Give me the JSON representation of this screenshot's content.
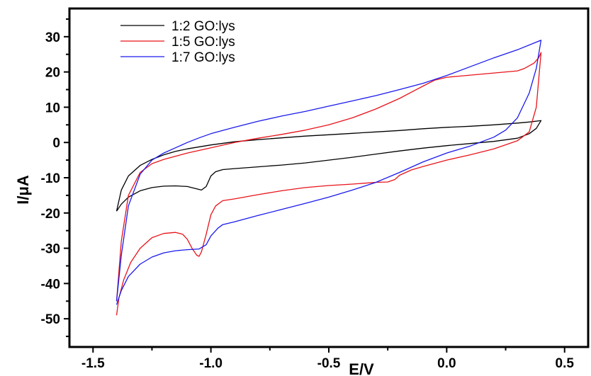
{
  "chart_data": {
    "type": "line",
    "title": "",
    "xlabel": "E/V",
    "ylabel": "I/μA",
    "xlim": [
      -1.6,
      0.6
    ],
    "ylim": [
      -58,
      38
    ],
    "x_ticks": [
      -1.5,
      -1.0,
      -0.5,
      0.0,
      0.5
    ],
    "x_tick_labels": [
      "-1.5",
      "-1.0",
      "-0.5",
      "0.0",
      "0.5"
    ],
    "y_ticks": [
      30,
      20,
      10,
      0,
      -10,
      -20,
      -30,
      -40,
      -50
    ],
    "y_tick_labels": [
      "30",
      "20",
      "10",
      "0",
      "-10",
      "-20",
      "-30",
      "-40",
      "-50"
    ],
    "grid": false,
    "legend_position": "top-left",
    "series": [
      {
        "name": "1:2 GO:lys",
        "color": "#000000",
        "points": [
          [
            -1.4,
            -19.5
          ],
          [
            -1.38,
            -17.5
          ],
          [
            -1.35,
            -15.5
          ],
          [
            -1.3,
            -13.7
          ],
          [
            -1.25,
            -12.8
          ],
          [
            -1.2,
            -12.4
          ],
          [
            -1.15,
            -12.3
          ],
          [
            -1.1,
            -12.5
          ],
          [
            -1.07,
            -13.0
          ],
          [
            -1.04,
            -13.5
          ],
          [
            -1.02,
            -12.5
          ],
          [
            -1.0,
            -9.5
          ],
          [
            -0.98,
            -8.3
          ],
          [
            -0.95,
            -7.7
          ],
          [
            -0.9,
            -7.4
          ],
          [
            -0.8,
            -6.9
          ],
          [
            -0.7,
            -6.4
          ],
          [
            -0.6,
            -5.8
          ],
          [
            -0.5,
            -5.0
          ],
          [
            -0.4,
            -4.2
          ],
          [
            -0.3,
            -3.3
          ],
          [
            -0.2,
            -2.4
          ],
          [
            -0.1,
            -1.6
          ],
          [
            0.0,
            -0.9
          ],
          [
            0.1,
            -0.3
          ],
          [
            0.2,
            0.3
          ],
          [
            0.3,
            1.2
          ],
          [
            0.35,
            2.5
          ],
          [
            0.38,
            4.0
          ],
          [
            0.4,
            6.2
          ],
          [
            0.35,
            5.8
          ],
          [
            0.3,
            5.5
          ],
          [
            0.2,
            5.0
          ],
          [
            0.1,
            4.6
          ],
          [
            0.0,
            4.3
          ],
          [
            -0.1,
            3.9
          ],
          [
            -0.2,
            3.4
          ],
          [
            -0.3,
            3.0
          ],
          [
            -0.4,
            2.6
          ],
          [
            -0.5,
            2.2
          ],
          [
            -0.6,
            1.8
          ],
          [
            -0.7,
            1.3
          ],
          [
            -0.8,
            0.8
          ],
          [
            -0.9,
            0.2
          ],
          [
            -1.0,
            -0.7
          ],
          [
            -1.1,
            -1.8
          ],
          [
            -1.15,
            -2.5
          ],
          [
            -1.2,
            -3.5
          ],
          [
            -1.25,
            -4.8
          ],
          [
            -1.3,
            -6.5
          ],
          [
            -1.35,
            -9.5
          ],
          [
            -1.38,
            -13.5
          ],
          [
            -1.4,
            -19.5
          ]
        ]
      },
      {
        "name": "1:5 GO:lys",
        "color": "#e8141a",
        "points": [
          [
            -1.4,
            -49.0
          ],
          [
            -1.39,
            -44.0
          ],
          [
            -1.37,
            -39.0
          ],
          [
            -1.34,
            -34.0
          ],
          [
            -1.3,
            -30.0
          ],
          [
            -1.25,
            -27.0
          ],
          [
            -1.2,
            -25.8
          ],
          [
            -1.15,
            -25.5
          ],
          [
            -1.12,
            -26.0
          ],
          [
            -1.1,
            -27.5
          ],
          [
            -1.08,
            -30.0
          ],
          [
            -1.06,
            -32.0
          ],
          [
            -1.05,
            -32.3
          ],
          [
            -1.04,
            -31.0
          ],
          [
            -1.02,
            -26.0
          ],
          [
            -1.0,
            -20.5
          ],
          [
            -0.98,
            -18.0
          ],
          [
            -0.95,
            -16.5
          ],
          [
            -0.9,
            -16.0
          ],
          [
            -0.8,
            -14.8
          ],
          [
            -0.7,
            -13.7
          ],
          [
            -0.6,
            -12.8
          ],
          [
            -0.5,
            -12.2
          ],
          [
            -0.4,
            -11.8
          ],
          [
            -0.3,
            -11.3
          ],
          [
            -0.25,
            -11.2
          ],
          [
            -0.22,
            -10.5
          ],
          [
            -0.2,
            -9.3
          ],
          [
            -0.15,
            -7.8
          ],
          [
            -0.1,
            -6.8
          ],
          [
            0.0,
            -5.0
          ],
          [
            0.1,
            -3.5
          ],
          [
            0.2,
            -1.8
          ],
          [
            0.3,
            0.5
          ],
          [
            0.35,
            3.0
          ],
          [
            0.38,
            10.0
          ],
          [
            0.4,
            25.5
          ],
          [
            0.39,
            24.0
          ],
          [
            0.37,
            22.5
          ],
          [
            0.33,
            21.0
          ],
          [
            0.3,
            20.3
          ],
          [
            0.2,
            19.7
          ],
          [
            0.1,
            19.1
          ],
          [
            0.05,
            18.8
          ],
          [
            0.0,
            18.5
          ],
          [
            -0.05,
            17.7
          ],
          [
            -0.1,
            16.0
          ],
          [
            -0.2,
            12.5
          ],
          [
            -0.3,
            9.5
          ],
          [
            -0.4,
            7.0
          ],
          [
            -0.5,
            5.0
          ],
          [
            -0.6,
            3.5
          ],
          [
            -0.7,
            2.3
          ],
          [
            -0.8,
            1.2
          ],
          [
            -0.9,
            0.0
          ],
          [
            -1.0,
            -1.5
          ],
          [
            -1.1,
            -3.0
          ],
          [
            -1.2,
            -4.8
          ],
          [
            -1.25,
            -6.0
          ],
          [
            -1.3,
            -8.5
          ],
          [
            -1.35,
            -15.0
          ],
          [
            -1.38,
            -28.0
          ],
          [
            -1.4,
            -45.0
          ]
        ]
      },
      {
        "name": "1:7 GO:lys",
        "color": "#1a1aee",
        "points": [
          [
            -1.4,
            -46.0
          ],
          [
            -1.38,
            -42.0
          ],
          [
            -1.35,
            -38.0
          ],
          [
            -1.3,
            -34.5
          ],
          [
            -1.25,
            -32.5
          ],
          [
            -1.2,
            -31.3
          ],
          [
            -1.15,
            -30.7
          ],
          [
            -1.1,
            -30.4
          ],
          [
            -1.05,
            -30.2
          ],
          [
            -1.02,
            -29.0
          ],
          [
            -1.0,
            -26.5
          ],
          [
            -0.97,
            -24.3
          ],
          [
            -0.95,
            -23.3
          ],
          [
            -0.9,
            -22.5
          ],
          [
            -0.8,
            -20.7
          ],
          [
            -0.7,
            -19.0
          ],
          [
            -0.6,
            -17.3
          ],
          [
            -0.5,
            -15.5
          ],
          [
            -0.4,
            -13.5
          ],
          [
            -0.3,
            -11.3
          ],
          [
            -0.2,
            -8.5
          ],
          [
            -0.1,
            -5.5
          ],
          [
            0.0,
            -3.0
          ],
          [
            0.1,
            -1.0
          ],
          [
            0.2,
            1.5
          ],
          [
            0.25,
            3.5
          ],
          [
            0.3,
            7.0
          ],
          [
            0.35,
            14.0
          ],
          [
            0.38,
            21.0
          ],
          [
            0.4,
            29.0
          ],
          [
            0.3,
            26.3
          ],
          [
            0.2,
            24.0
          ],
          [
            0.1,
            21.5
          ],
          [
            0.0,
            19.0
          ],
          [
            -0.1,
            16.8
          ],
          [
            -0.2,
            15.0
          ],
          [
            -0.3,
            13.3
          ],
          [
            -0.4,
            11.8
          ],
          [
            -0.5,
            10.3
          ],
          [
            -0.6,
            8.8
          ],
          [
            -0.7,
            7.5
          ],
          [
            -0.8,
            6.0
          ],
          [
            -0.9,
            4.3
          ],
          [
            -1.0,
            2.5
          ],
          [
            -1.05,
            1.3
          ],
          [
            -1.1,
            0.0
          ],
          [
            -1.15,
            -1.5
          ],
          [
            -1.2,
            -3.0
          ],
          [
            -1.25,
            -5.0
          ],
          [
            -1.3,
            -9.0
          ],
          [
            -1.35,
            -18.0
          ],
          [
            -1.38,
            -32.0
          ],
          [
            -1.4,
            -45.0
          ]
        ]
      }
    ]
  }
}
